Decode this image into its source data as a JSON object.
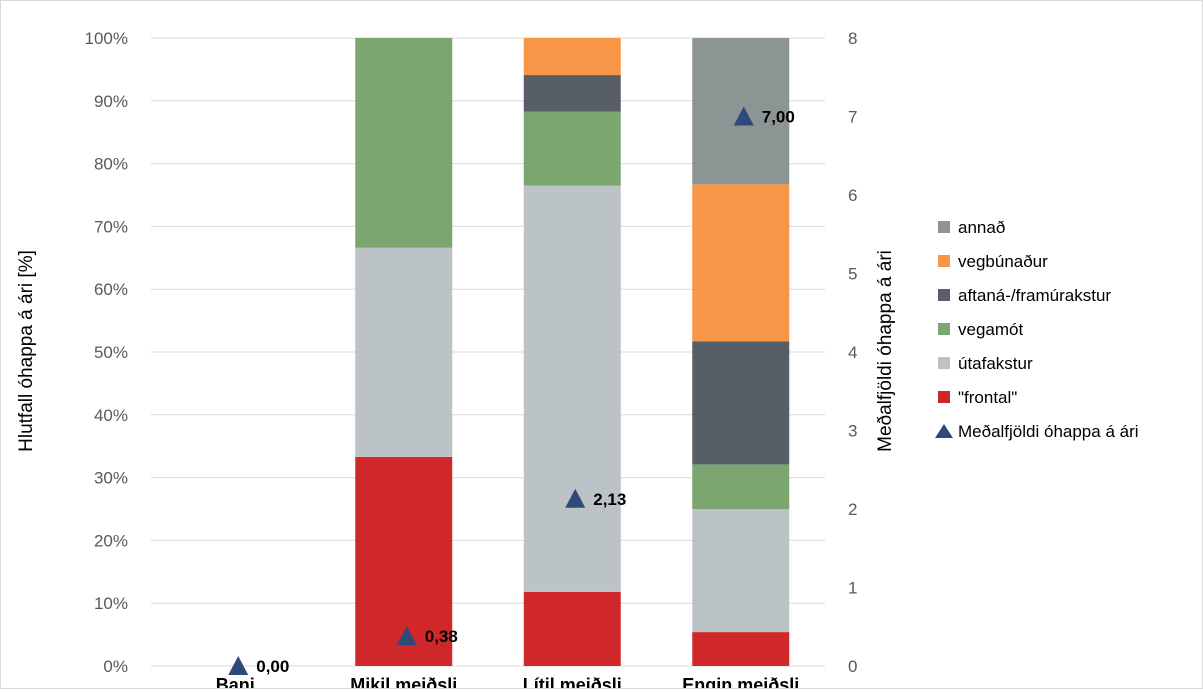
{
  "chart_data": {
    "type": "bar",
    "stacked": true,
    "percent_stacked": true,
    "categories": [
      "Bani",
      "Mikil meiðsli",
      "Lítil meiðsli",
      "Engin meiðsli"
    ],
    "ylabel": "Hlutfall óhappa á ári [%]",
    "y2label": "Meðalfjöldi óhappa á ári",
    "ylim": [
      0,
      100
    ],
    "y2lim": [
      0,
      8
    ],
    "yticks": [
      "0%",
      "10%",
      "20%",
      "30%",
      "40%",
      "50%",
      "60%",
      "70%",
      "80%",
      "90%",
      "100%"
    ],
    "y2ticks": [
      "0",
      "1",
      "2",
      "3",
      "4",
      "5",
      "6",
      "7",
      "8"
    ],
    "grid": true,
    "legend_position": "right",
    "series": [
      {
        "name": "\"frontal\"",
        "color": "#d0282a",
        "values": [
          0,
          33.3,
          11.8,
          5.4
        ]
      },
      {
        "name": "útafakstur",
        "color": "#bcc3c7",
        "values": [
          0,
          33.3,
          64.7,
          19.6
        ]
      },
      {
        "name": "vegamót",
        "color": "#7ba66f",
        "values": [
          0,
          33.4,
          11.8,
          7.1
        ]
      },
      {
        "name": "aftaná-/framúrakstur",
        "color": "#585e66",
        "values": [
          0,
          0,
          5.8,
          19.6
        ]
      },
      {
        "name": "vegbúnaður",
        "color": "#f79646",
        "values": [
          0,
          0,
          5.9,
          25.0
        ]
      },
      {
        "name": "annað",
        "color": "#8c9494",
        "values": [
          0,
          0,
          0,
          23.3
        ]
      }
    ],
    "line_series": {
      "name": "Meðalfjöldi óhappa á ári",
      "axis": "secondary",
      "marker": "triangle",
      "color": "#2e4a78",
      "values": [
        0.0,
        0.38,
        2.13,
        7.0
      ],
      "labels": [
        "0,00",
        "0,38",
        "2,13",
        "7,00"
      ]
    },
    "legend_order": [
      "annað",
      "vegbúnaður",
      "aftaná-/framúrakstur",
      "vegamót",
      "útafakstur",
      "\"frontal\"",
      "Meðalfjöldi óhappa á ári"
    ]
  }
}
